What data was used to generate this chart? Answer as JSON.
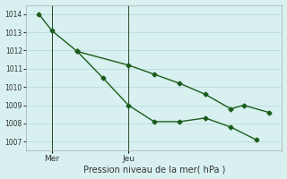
{
  "title": "Pression niveau de la mer( hPa )",
  "background_color": "#d8f0f0",
  "grid_color": "#c0dede",
  "line_color": "#1a5c1a",
  "ylim": [
    1006.5,
    1014.5
  ],
  "yticks": [
    1007,
    1008,
    1009,
    1010,
    1011,
    1012,
    1013,
    1014
  ],
  "xlim": [
    -0.5,
    9.5
  ],
  "xtick_positions": [
    0.5,
    3.5
  ],
  "xtick_labels": [
    "Mer",
    "Jeu"
  ],
  "vlines": [
    0.5,
    3.5
  ],
  "line1_x": [
    0,
    0.5,
    1.5,
    2.5,
    3.5,
    4.5,
    5.5,
    6.5,
    7.5,
    8.5
  ],
  "line1_y": [
    1014.0,
    1013.1,
    1011.95,
    1010.5,
    1009.0,
    1008.1,
    1008.1,
    1008.3,
    1007.8,
    1007.1
  ],
  "line2_x": [
    1.5,
    3.5,
    4.5,
    5.5,
    6.5,
    7.5,
    8.0,
    9.0
  ],
  "line2_y": [
    1011.95,
    1011.2,
    1010.7,
    1010.2,
    1009.6,
    1008.8,
    1009.0,
    1008.6
  ],
  "marker": "D",
  "markersize": 2.5,
  "linewidth": 1.0
}
